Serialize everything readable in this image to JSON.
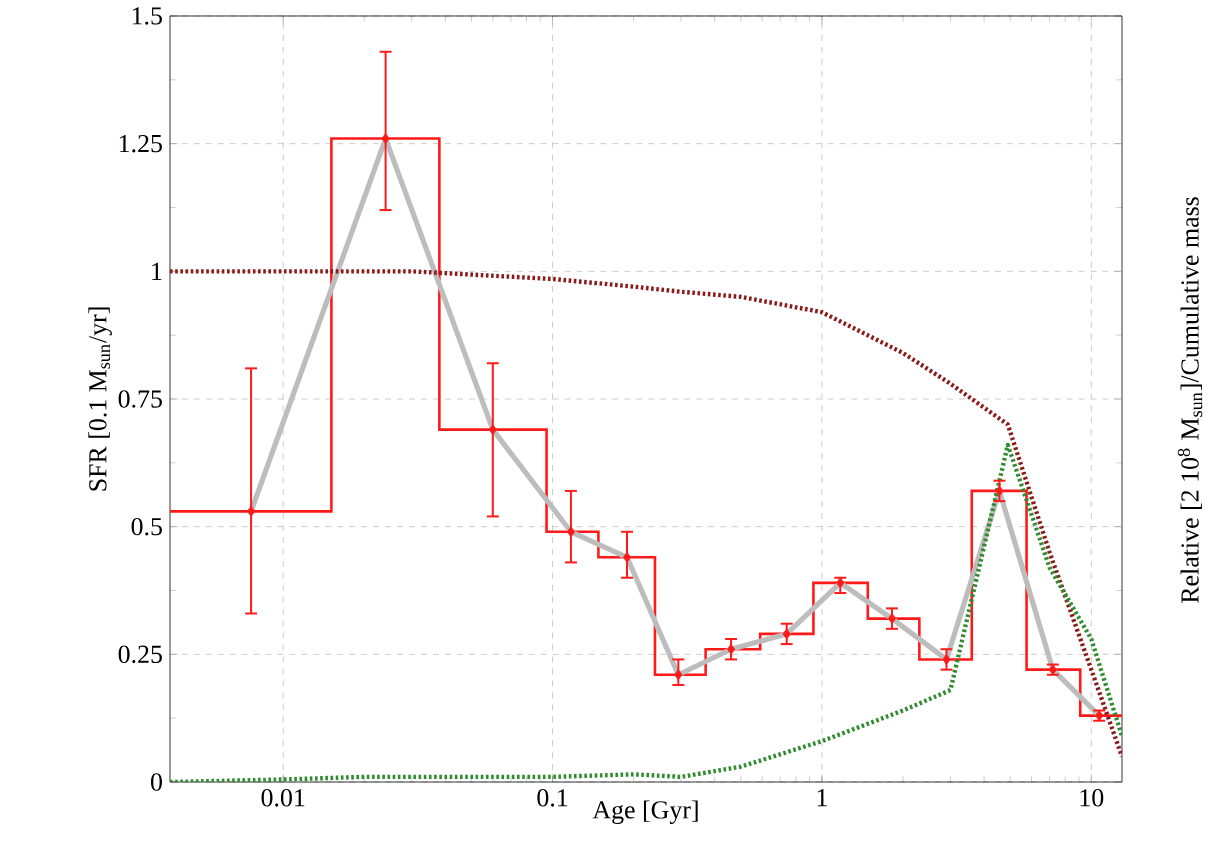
{
  "chart_data": {
    "type": "line",
    "xlabel": "Age [Gyr]",
    "ylabel": "SFR [0.1 M$_{sun}$/yr]",
    "y2label": "Relative [2 10$^{8}$ M$_{sun}$]/Cumulative mass",
    "log": "x",
    "grid": true,
    "xlim": [
      0.0038,
      13
    ],
    "xticks": [
      0.01,
      0.1,
      1,
      10
    ],
    "ylim": [
      0,
      1.5
    ],
    "yticks": [
      0,
      0.25,
      0.5,
      0.75,
      1,
      1.25,
      1.5
    ],
    "series": [
      {
        "type": "step",
        "color": "#ff1a1a",
        "x": [
          0.0038,
          0.0151,
          0.038,
          0.095,
          0.148,
          0.24,
          0.37,
          0.59,
          0.93,
          1.48,
          2.3,
          3.6,
          5.75,
          9.1,
          13
        ],
        "values": [
          0.53,
          1.26,
          0.69,
          0.49,
          0.44,
          0.21,
          0.26,
          0.29,
          0.39,
          0.32,
          0.24,
          0.57,
          0.22,
          0.13,
          0.13
        ]
      },
      {
        "color": "#bdbdbd",
        "x": [
          0.0076,
          0.024,
          0.06,
          0.117,
          0.189,
          0.293,
          0.46,
          0.74,
          1.17,
          1.82,
          2.9,
          4.56,
          7.2,
          10.7
        ],
        "values": [
          0.53,
          1.26,
          0.69,
          0.49,
          0.44,
          0.21,
          0.26,
          0.29,
          0.39,
          0.32,
          0.24,
          0.57,
          0.22,
          0.13
        ]
      },
      {
        "type": "line",
        "color": "#8b1a1a",
        "line_style": "dotted",
        "x": [
          0.0038,
          0.01,
          0.03,
          0.1,
          0.2,
          0.3,
          0.5,
          1,
          2,
          3,
          4.9,
          7,
          10,
          13
        ],
        "values": [
          1.0,
          1.0,
          1.0,
          0.985,
          0.97,
          0.96,
          0.95,
          0.92,
          0.84,
          0.78,
          0.7,
          0.45,
          0.22,
          0.05
        ]
      },
      {
        "type": "line",
        "color": "#2e8b2e",
        "line_style": "dotted",
        "x": [
          0.0038,
          0.01,
          0.02,
          0.1,
          0.2,
          0.3,
          0.5,
          1,
          2,
          3,
          4.9,
          7,
          10,
          13
        ],
        "values": [
          0.0,
          0.005,
          0.01,
          0.01,
          0.015,
          0.01,
          0.03,
          0.08,
          0.14,
          0.18,
          0.66,
          0.42,
          0.28,
          0.09
        ]
      },
      {
        "type": "scatter",
        "color": "#ff1a1a",
        "marker": "diamond",
        "x": [
          0.0076,
          0.024,
          0.06,
          0.117,
          0.189,
          0.293,
          0.46,
          0.74,
          1.17,
          1.82,
          2.9,
          4.56,
          7.2,
          10.7
        ],
        "values": [
          0.53,
          1.26,
          0.69,
          0.49,
          0.44,
          0.21,
          0.26,
          0.29,
          0.39,
          0.32,
          0.24,
          0.57,
          0.22,
          0.13
        ],
        "errors": [
          [
            0.33,
            0.81
          ],
          [
            1.12,
            1.43
          ],
          [
            0.52,
            0.82
          ],
          [
            0.43,
            0.57
          ],
          [
            0.4,
            0.49
          ],
          [
            0.19,
            0.24
          ],
          [
            0.24,
            0.28
          ],
          [
            0.27,
            0.31
          ],
          [
            0.37,
            0.4
          ],
          [
            0.3,
            0.34
          ],
          [
            0.22,
            0.26
          ],
          [
            0.55,
            0.59
          ],
          [
            0.21,
            0.23
          ],
          [
            0.12,
            0.14
          ]
        ]
      }
    ]
  }
}
